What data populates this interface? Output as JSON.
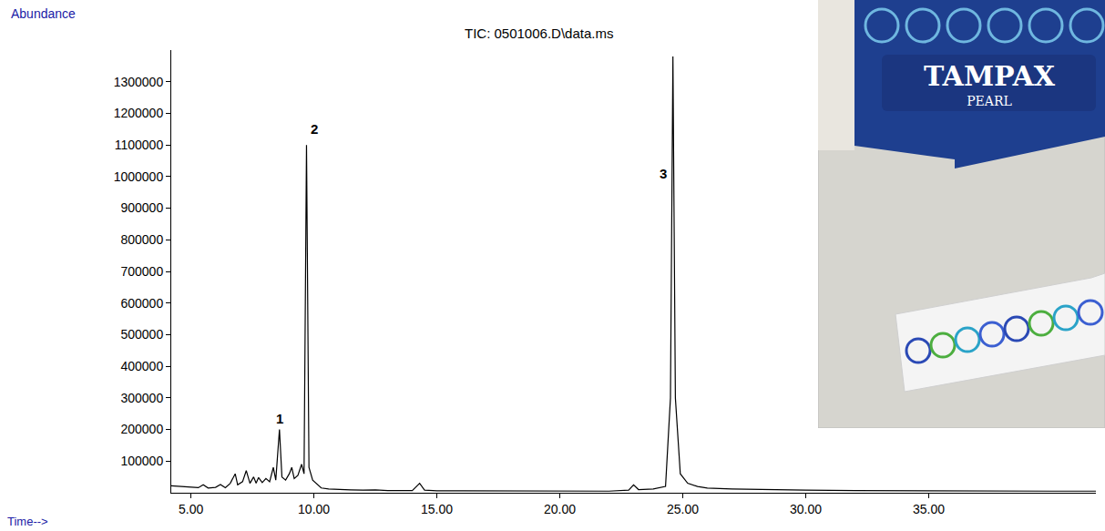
{
  "chart_data": {
    "type": "line",
    "title": "TIC: 0501006.D\\data.ms",
    "x_label": "Time-->",
    "y_label": "Abundance",
    "x": [
      4.2,
      4.6,
      5.0,
      5.3,
      5.5,
      5.7,
      6.0,
      6.2,
      6.4,
      6.6,
      6.8,
      6.9,
      7.1,
      7.25,
      7.4,
      7.55,
      7.65,
      7.75,
      7.9,
      8.05,
      8.2,
      8.35,
      8.45,
      8.6,
      8.7,
      8.85,
      9.0,
      9.1,
      9.2,
      9.35,
      9.5,
      9.6,
      9.7,
      9.8,
      9.95,
      10.1,
      10.3,
      10.6,
      11.0,
      11.5,
      12.0,
      12.5,
      13.0,
      13.5,
      14.0,
      14.3,
      14.5,
      15.0,
      16.0,
      17.0,
      17.5,
      18.0,
      19.0,
      20.0,
      21.0,
      22.0,
      22.8,
      23.0,
      23.2,
      23.8,
      24.3,
      24.5,
      24.6,
      24.7,
      24.9,
      25.2,
      25.6,
      26.0,
      27.0,
      28.0,
      29.0,
      30.0,
      32.0,
      34.0,
      36.0,
      38.0,
      40.0,
      41.8
    ],
    "values": [
      22000,
      20000,
      18000,
      16000,
      25000,
      15000,
      17000,
      26000,
      16000,
      30000,
      60000,
      25000,
      35000,
      70000,
      30000,
      50000,
      30000,
      48000,
      32000,
      45000,
      35000,
      80000,
      40000,
      200000,
      50000,
      40000,
      60000,
      80000,
      45000,
      55000,
      90000,
      60000,
      1100000,
      80000,
      40000,
      30000,
      15000,
      12000,
      10000,
      9000,
      8000,
      9000,
      7000,
      8000,
      7000,
      30000,
      8000,
      6000,
      6000,
      5000,
      7000,
      5000,
      6000,
      5000,
      6000,
      5000,
      8000,
      25000,
      10000,
      12000,
      20000,
      300000,
      1380000,
      300000,
      60000,
      30000,
      20000,
      15000,
      12000,
      10000,
      9000,
      8000,
      7000,
      6000,
      6000,
      5000,
      5000,
      5000
    ],
    "color": "#000000",
    "xlim": [
      4.2,
      41.8
    ],
    "ylim": [
      0,
      1400000
    ],
    "xticks": [
      {
        "value": 5,
        "label": "5.00"
      },
      {
        "value": 10,
        "label": "10.00"
      },
      {
        "value": 15,
        "label": "15.00"
      },
      {
        "value": 20,
        "label": "20.00"
      },
      {
        "value": 25,
        "label": "25.00"
      },
      {
        "value": 30,
        "label": "30.00"
      },
      {
        "value": 35,
        "label": "35.00"
      }
    ],
    "yticks": [
      100000,
      200000,
      300000,
      400000,
      500000,
      600000,
      700000,
      800000,
      900000,
      1000000,
      1100000,
      1200000,
      1300000
    ],
    "grid": false,
    "annotations": [
      {
        "text": "1",
        "x": 8.6,
        "y": 235000
      },
      {
        "text": "2",
        "x": 10.0,
        "y": 1150000
      },
      {
        "text": "3",
        "x": 24.2,
        "y": 1010000
      }
    ]
  },
  "inset_photo": {
    "texts": [
      "TAMPAX",
      "PEARL"
    ]
  }
}
